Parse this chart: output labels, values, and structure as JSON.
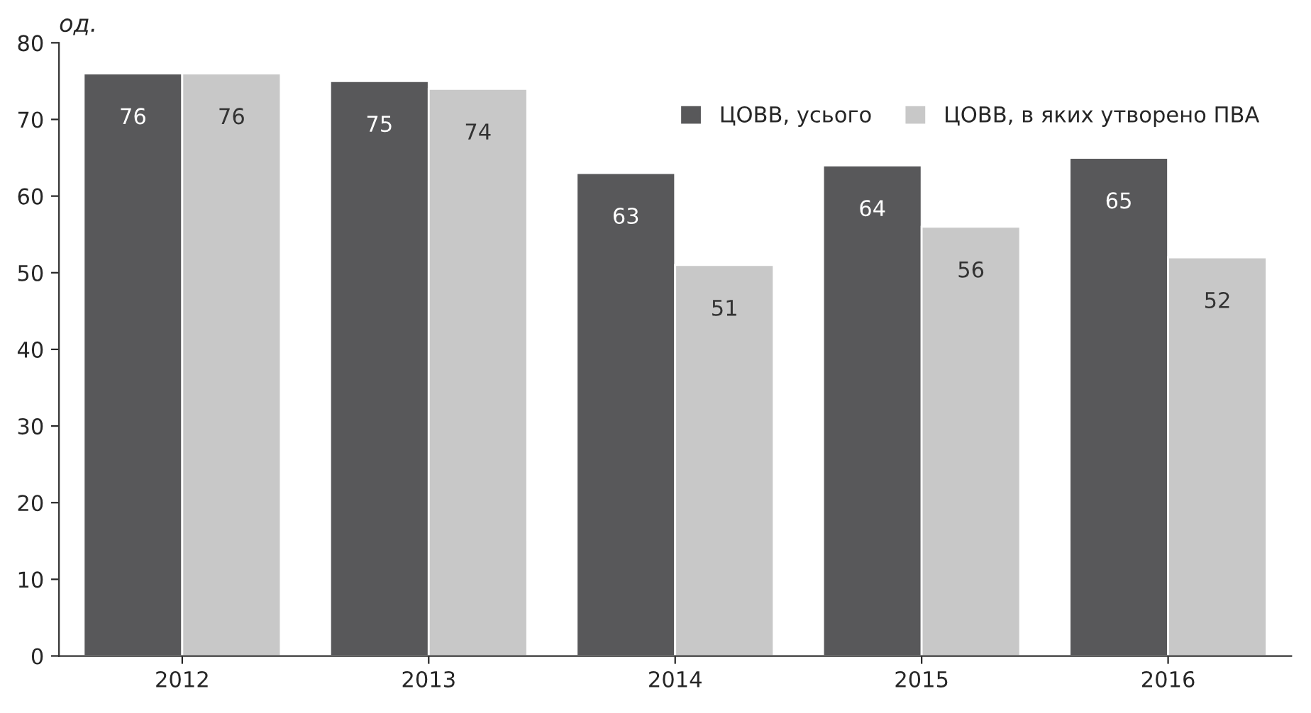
{
  "chart_data": {
    "type": "bar",
    "ylabel": "од.",
    "categories": [
      "2012",
      "2013",
      "2014",
      "2015",
      "2016"
    ],
    "series": [
      {
        "name": "ЦОВВ, усього",
        "color": "#58585a",
        "values": [
          76,
          75,
          63,
          64,
          65
        ]
      },
      {
        "name": "ЦОВВ, в яких утворено ПВА",
        "color": "#c8c8c8",
        "values": [
          76,
          74,
          51,
          56,
          52
        ]
      }
    ],
    "ylim": [
      0,
      80
    ],
    "yticks": [
      0,
      10,
      20,
      30,
      40,
      50,
      60,
      70,
      80
    ],
    "grid": false,
    "legend": "top right",
    "data_labels": true
  }
}
